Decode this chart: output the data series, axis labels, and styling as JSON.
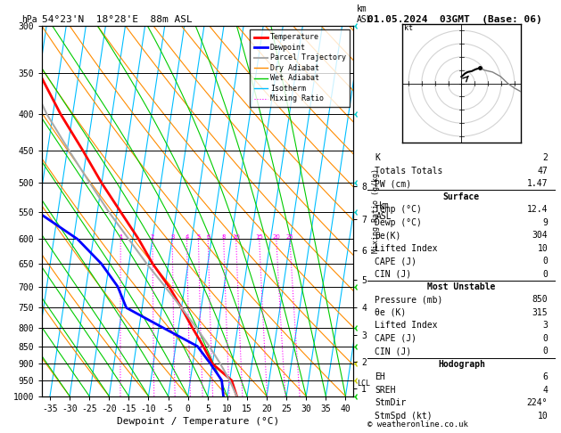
{
  "title_left": "54°23'N  18°28'E  88m ASL",
  "title_right": "01.05.2024  03GMT  (Base: 06)",
  "xlabel": "Dewpoint / Temperature (°C)",
  "bg_color": "#ffffff",
  "isotherm_color": "#00bfff",
  "dry_adiabat_color": "#ff8c00",
  "wet_adiabat_color": "#00cc00",
  "mixing_ratio_color": "#ff00ff",
  "temp_color": "#ff0000",
  "dewp_color": "#0000ff",
  "parcel_color": "#aaaaaa",
  "skew_k": 27.0,
  "xlim": [
    -37,
    42
  ],
  "pressures": [
    300,
    350,
    400,
    450,
    500,
    550,
    600,
    650,
    700,
    750,
    800,
    850,
    900,
    950,
    1000
  ],
  "mixing_ratio_values": [
    1,
    2,
    3,
    4,
    5,
    6,
    8,
    10,
    15,
    20,
    25
  ],
  "km_pressures": [
    975,
    895,
    820,
    750,
    685,
    622,
    562,
    505
  ],
  "km_labels": [
    "1",
    "2",
    "3",
    "4",
    "5",
    "6",
    "7",
    "8"
  ],
  "temp_data": [
    [
      1000,
      12.4
    ],
    [
      950,
      10.5
    ],
    [
      900,
      5.0
    ],
    [
      850,
      2.0
    ],
    [
      800,
      -1.5
    ],
    [
      750,
      -5.0
    ],
    [
      700,
      -9.0
    ],
    [
      650,
      -14.0
    ],
    [
      600,
      -18.5
    ],
    [
      550,
      -24.0
    ],
    [
      500,
      -30.0
    ],
    [
      450,
      -36.0
    ],
    [
      400,
      -43.0
    ],
    [
      350,
      -50.0
    ],
    [
      300,
      -52.0
    ]
  ],
  "dewp_data": [
    [
      1000,
      9.0
    ],
    [
      950,
      8.0
    ],
    [
      900,
      4.5
    ],
    [
      850,
      0.5
    ],
    [
      800,
      -9.0
    ],
    [
      750,
      -19.0
    ],
    [
      700,
      -22.0
    ],
    [
      650,
      -27.0
    ],
    [
      600,
      -34.0
    ],
    [
      550,
      -45.0
    ],
    [
      500,
      -50.0
    ],
    [
      450,
      -55.0
    ],
    [
      400,
      -58.0
    ],
    [
      350,
      -62.0
    ],
    [
      300,
      -65.0
    ]
  ],
  "parcel_data": [
    [
      1000,
      12.4
    ],
    [
      950,
      10.0
    ],
    [
      900,
      7.0
    ],
    [
      850,
      3.5
    ],
    [
      800,
      -0.5
    ],
    [
      750,
      -5.0
    ],
    [
      700,
      -10.0
    ],
    [
      650,
      -15.5
    ],
    [
      600,
      -21.0
    ],
    [
      550,
      -27.0
    ],
    [
      500,
      -33.0
    ],
    [
      450,
      -39.5
    ],
    [
      400,
      -46.5
    ],
    [
      350,
      -53.0
    ],
    [
      300,
      -57.0
    ]
  ],
  "legend_items": [
    {
      "label": "Temperature",
      "color": "#ff0000",
      "lw": 2.0,
      "ls": "-"
    },
    {
      "label": "Dewpoint",
      "color": "#0000ff",
      "lw": 2.0,
      "ls": "-"
    },
    {
      "label": "Parcel Trajectory",
      "color": "#aaaaaa",
      "lw": 1.5,
      "ls": "-"
    },
    {
      "label": "Dry Adiabat",
      "color": "#ff8c00",
      "lw": 1.0,
      "ls": "-"
    },
    {
      "label": "Wet Adiabat",
      "color": "#00cc00",
      "lw": 1.0,
      "ls": "-"
    },
    {
      "label": "Isotherm",
      "color": "#00bfff",
      "lw": 1.0,
      "ls": "-"
    },
    {
      "label": "Mixing Ratio",
      "color": "#ff00ff",
      "lw": 0.8,
      "ls": ":"
    }
  ],
  "stats_rows": [
    [
      "K",
      "2",
      "normal"
    ],
    [
      "Totals Totals",
      "47",
      "normal"
    ],
    [
      "PW (cm)",
      "1.47",
      "normal"
    ],
    [
      "Surface",
      "",
      "header"
    ],
    [
      "Temp (°C)",
      "12.4",
      "normal"
    ],
    [
      "Dewp (°C)",
      "9",
      "normal"
    ],
    [
      "θe(K)",
      "304",
      "normal"
    ],
    [
      "Lifted Index",
      "10",
      "normal"
    ],
    [
      "CAPE (J)",
      "0",
      "normal"
    ],
    [
      "CIN (J)",
      "0",
      "normal"
    ],
    [
      "Most Unstable",
      "",
      "header"
    ],
    [
      "Pressure (mb)",
      "850",
      "normal"
    ],
    [
      "θe (K)",
      "315",
      "normal"
    ],
    [
      "Lifted Index",
      "3",
      "normal"
    ],
    [
      "CAPE (J)",
      "0",
      "normal"
    ],
    [
      "CIN (J)",
      "0",
      "normal"
    ],
    [
      "Hodograph",
      "",
      "header"
    ],
    [
      "EH",
      "6",
      "normal"
    ],
    [
      "SREH",
      "4",
      "normal"
    ],
    [
      "StmDir",
      "224°",
      "normal"
    ],
    [
      "StmSpd (kt)",
      "10",
      "normal"
    ]
  ],
  "copyright": "© weatheronline.co.uk",
  "wind_barb_pressures": [
    300,
    400,
    500,
    550,
    700,
    800,
    850,
    900,
    950,
    1000
  ],
  "wind_barb_colors": [
    "#00cccc",
    "#00cccc",
    "#00cccc",
    "#00cccc",
    "#00cc00",
    "#00cc00",
    "#00cc00",
    "#cccc00",
    "#cccc00",
    "#00cc00"
  ],
  "lcl_pressure": 960
}
